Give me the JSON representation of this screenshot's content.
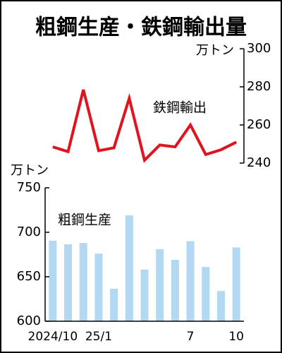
{
  "chart_data": [
    {
      "type": "line",
      "title": "粗鋼生産・鉄鋼輸出量",
      "y_unit": "万トン",
      "series": [
        {
          "name": "鉄鋼輸出",
          "color": "#e0141e",
          "values": [
            248.5,
            246,
            278.5,
            246.5,
            248,
            274,
            241.5,
            249.5,
            248.5,
            260,
            244.5,
            247,
            251
          ]
        }
      ],
      "ylim": [
        240,
        300
      ],
      "yticks": [
        240,
        260,
        280,
        300
      ],
      "y_axis_side": "right"
    },
    {
      "type": "bar",
      "y_unit": "万トン",
      "categories": [
        "2024/10",
        null,
        null,
        "25/1",
        null,
        null,
        null,
        null,
        null,
        "7",
        null,
        null,
        "10"
      ],
      "series": [
        {
          "name": "粗鋼生産",
          "color": "#b3d9f2",
          "values": [
            690.5,
            686.5,
            688,
            676,
            636.5,
            719,
            658,
            681,
            669,
            690,
            661,
            634,
            683
          ]
        }
      ],
      "ylim": [
        600,
        750
      ],
      "yticks": [
        600,
        650,
        700,
        750
      ],
      "y_axis_side": "left"
    }
  ]
}
